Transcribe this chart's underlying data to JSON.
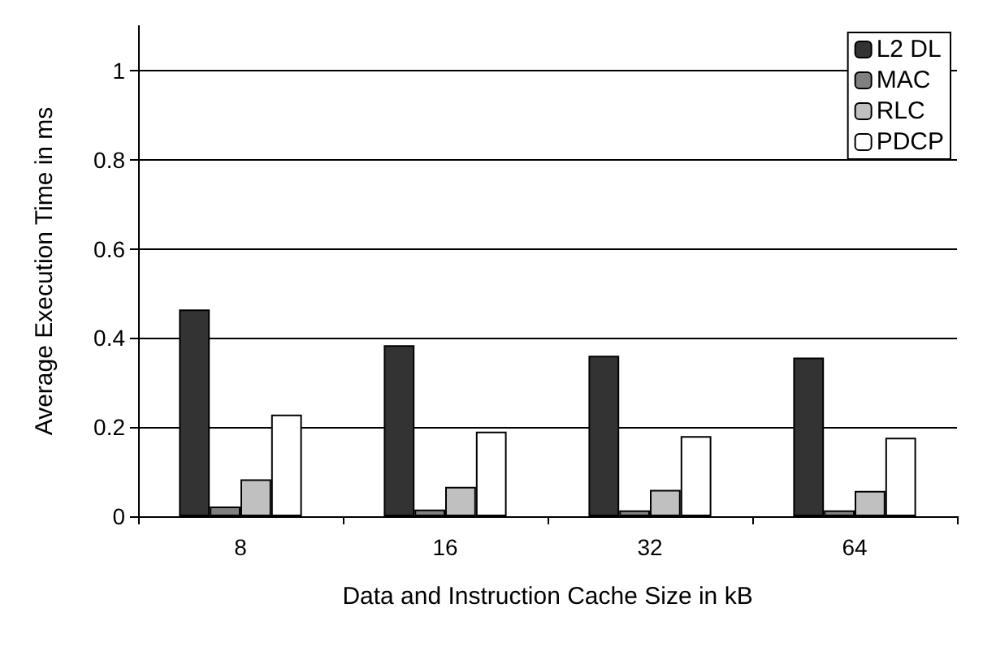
{
  "chart_data": {
    "type": "bar",
    "xlabel": "Data and Instruction Cache Size in kB",
    "ylabel": "Average Execution Time in ms",
    "categories": [
      "8",
      "16",
      "32",
      "64"
    ],
    "series": [
      {
        "name": "L2 DL",
        "color": "#333333",
        "values": [
          0.464,
          0.384,
          0.36,
          0.356
        ]
      },
      {
        "name": "MAC",
        "color": "#808080",
        "values": [
          0.022,
          0.015,
          0.013,
          0.013
        ]
      },
      {
        "name": "RLC",
        "color": "#c0c0c0",
        "values": [
          0.083,
          0.066,
          0.059,
          0.057
        ]
      },
      {
        "name": "PDCP",
        "color": "#ffffff",
        "values": [
          0.228,
          0.19,
          0.18,
          0.176
        ]
      }
    ],
    "ylim": [
      0,
      1.1
    ],
    "yticks": [
      0,
      0.2,
      0.4,
      0.6,
      0.8,
      1
    ],
    "grid": "y",
    "legend": "top right"
  }
}
